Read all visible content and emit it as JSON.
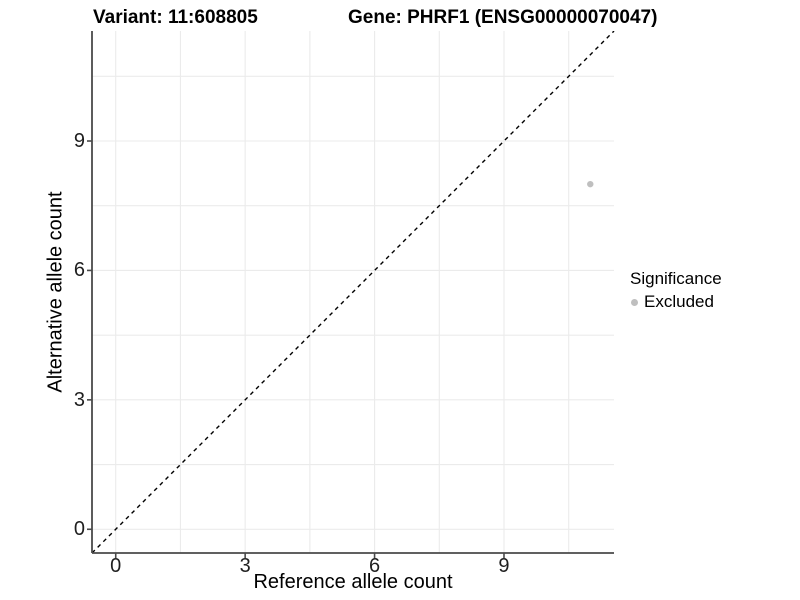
{
  "header": {
    "variant_title": "Variant: 11:608805",
    "gene_title": "Gene: PHRF1 (ENSG00000070047)"
  },
  "chart_data": {
    "type": "scatter",
    "title_left": "Variant: 11:608805",
    "title_right": "Gene: PHRF1 (ENSG00000070047)",
    "xlabel": "Reference allele count",
    "ylabel": "Alternative allele count",
    "x_ticks": [
      0,
      3,
      6,
      9
    ],
    "y_ticks": [
      0,
      3,
      6,
      9
    ],
    "x_minor_ticks": [
      1.5,
      4.5,
      7.5,
      10.5
    ],
    "y_minor_ticks": [
      1.5,
      4.5,
      7.5,
      10.5
    ],
    "xlim": [
      -0.55,
      11.55
    ],
    "ylim": [
      -0.55,
      11.55
    ],
    "grid": true,
    "legend_position": "right",
    "identity_line": {
      "equation": "y = x",
      "style": "dashed",
      "color": "#000000"
    },
    "series": [
      {
        "name": "Excluded",
        "color": "#bfbfbf",
        "points": [
          {
            "x": 11,
            "y": 8
          }
        ]
      }
    ],
    "legend": {
      "title": "Significance",
      "items": [
        {
          "label": "Excluded",
          "color": "#bfbfbf"
        }
      ]
    }
  },
  "colors": {
    "background": "#ffffff",
    "gridline": "#ebebeb",
    "axis_line": "#4a4a4a",
    "tick_mark": "#4a4a4a",
    "tick_text": "#1f1f1f",
    "point": "#bfbfbf",
    "identity_line": "#000000"
  }
}
